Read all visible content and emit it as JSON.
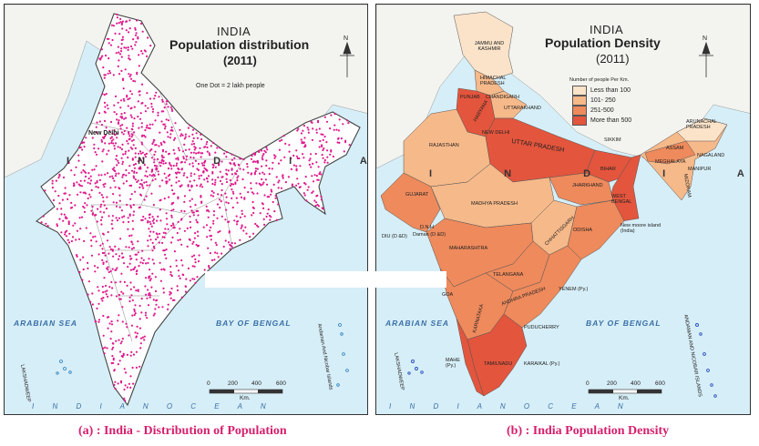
{
  "map_a": {
    "title_line1": "INDIA",
    "title_line2": "Population distribution",
    "title_line3": "(2011)",
    "legend_note": "One Dot = 2 lakh people",
    "country_letters": "I N D I A",
    "city_label": "New Delhi",
    "sea_left": "ARABIAN SEA",
    "sea_right": "BAY OF BENGAL",
    "ocean": "I N D I A N   O C E A N",
    "lakshadweep": "LAKSHADWEEP",
    "andaman": "Andaman And Nicobar Islands",
    "scale_ticks": [
      "0",
      "200",
      "400",
      "600"
    ],
    "scale_unit": "Km.",
    "north": "N",
    "dot_color": "#e0188c"
  },
  "map_b": {
    "title_line1": "INDIA",
    "title_line2": "Population Density",
    "title_line3": "(2011)",
    "legend_title": "Number of people Per Km.",
    "legend": [
      {
        "label": "Less than 100",
        "color": "#fbe3c9"
      },
      {
        "label": "101- 250",
        "color": "#f6b98a"
      },
      {
        "label": "251-500",
        "color": "#ee8a5c"
      },
      {
        "label": "More than 500",
        "color": "#e3553d"
      }
    ],
    "states": {
      "jk": "JAMMU AND KASHMIR",
      "hp": "HIMACHAL PRADESH",
      "punjab": "PUNJAB",
      "chandigarh": "CHANDIGARH",
      "uttarakhand": "UTTARAKHAND",
      "haryana": "HARYANA",
      "delhi": "NEW DELHI",
      "rajasthan": "RAJASTHAN",
      "up": "UTTAR PRADESH",
      "sikkim": "SIKKIM",
      "arunachal": "ARUNACHAL PRADESH",
      "assam": "ASSAM",
      "nagaland": "NAGALAND",
      "meghalaya": "MEGHALAYA",
      "manipur": "MANIPUR",
      "mizoram": "MIZORAM",
      "bihar": "BIHAR",
      "gujarat": "GUJARAT",
      "mp": "MADHYA PRADESH",
      "jharkhand": "JHARKHAND",
      "wb": "WEST BENGAL",
      "chhattisgarh": "CHHATTISGARH",
      "odisha": "ODISHA",
      "maharashtra": "MAHARASHTRA",
      "dnh": "D.N.H",
      "daman": "Daman (D &D)",
      "diu": "DIU (D &D)",
      "telangana": "TELANGANA",
      "goa": "GOA",
      "karnataka": "KARNATAKA",
      "ap": "ANDHRA PRADESH",
      "yenem": "YENEM (Py.)",
      "puducherry": "PUDUCHERRY",
      "mahe": "MAHE (Py.)",
      "tamilnadu": "TAMILNADU",
      "karaikal": "KARAIKAL (Py.)",
      "new_moore": "New moore island (India)",
      "lakshadweep": "LAKSHADWEEP",
      "andaman": "ANDAMAN AND NICOBAR ISLANDS"
    },
    "country_letters": "I N D I A",
    "sea_left": "ARABIAN SEA",
    "sea_right": "BAY OF BENGAL",
    "ocean": "I N D I A N   O C E A N",
    "scale_ticks": [
      "0",
      "200",
      "400",
      "600"
    ],
    "scale_unit": "Km.",
    "north": "N"
  },
  "captions": {
    "a": "(a) : India - Distribution of Population",
    "b": "(b) : India Population Density"
  }
}
